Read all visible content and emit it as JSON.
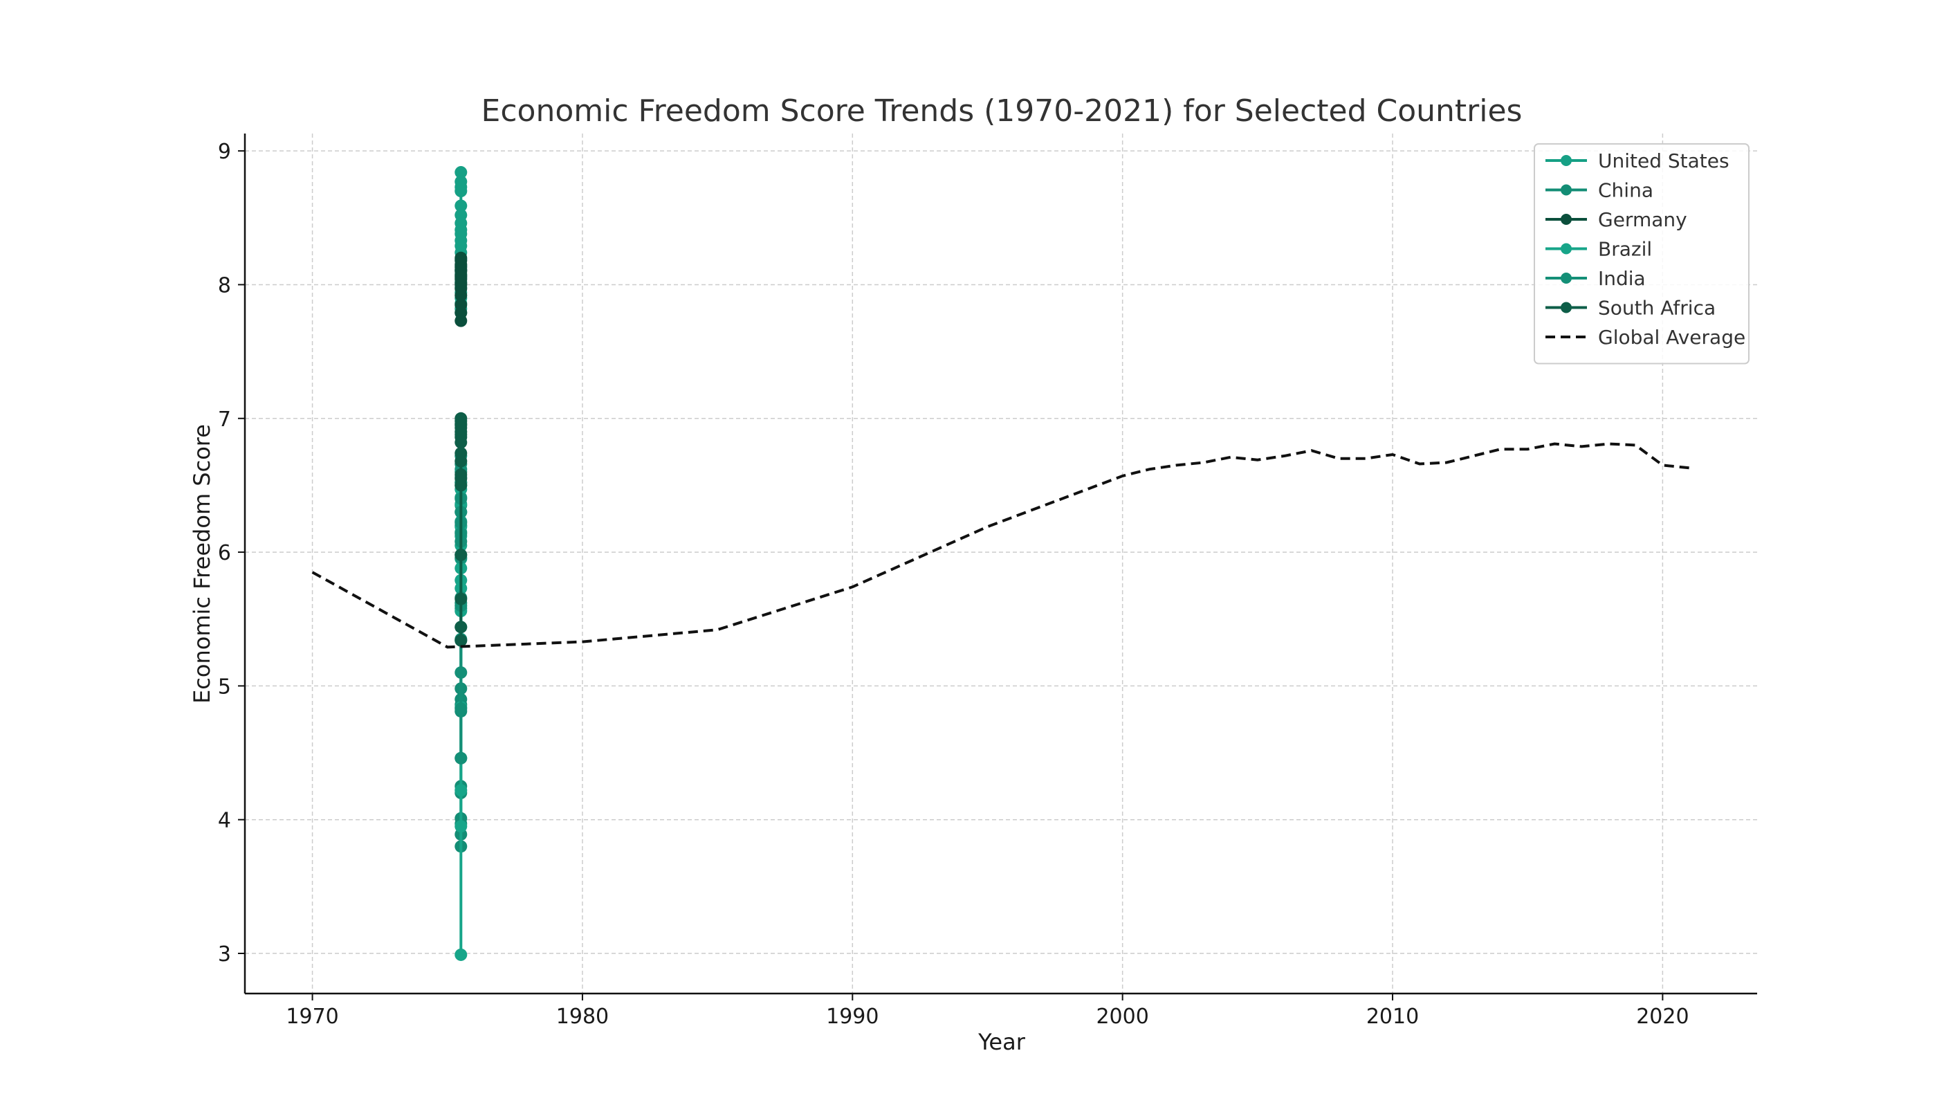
{
  "chart_data": {
    "type": "line",
    "title": "Economic Freedom Score Trends (1970-2021) for Selected Countries",
    "xlabel": "Year",
    "ylabel": "Economic Freedom Score",
    "xlim": [
      1967.5,
      2023.5
    ],
    "ylim": [
      2.7,
      9.13
    ],
    "xticks": [
      1970,
      1980,
      1990,
      2000,
      2010,
      2020
    ],
    "yticks": [
      3,
      4,
      5,
      6,
      7,
      8,
      9
    ],
    "grid": true,
    "legend_position": "top-right",
    "series": [
      {
        "name": "United States",
        "color": "#16a085",
        "style": "solid-markers",
        "x": [
          1975.5,
          1975.5,
          1975.5,
          1975.5,
          1975.5,
          1975.5,
          1975.5,
          1975.5,
          1975.5,
          1975.5,
          1975.5,
          1975.5,
          1975.5,
          1975.5,
          1975.5,
          1975.5,
          1975.5,
          1975.5,
          1975.5,
          1975.5,
          1975.5,
          1975.5,
          1975.5,
          1975.5
        ],
        "y": [
          8.84,
          8.77,
          8.73,
          8.7,
          8.59,
          8.52,
          8.46,
          8.41,
          8.38,
          8.33,
          8.29,
          8.24,
          8.19,
          8.14,
          8.11,
          8.08,
          8.05,
          8.02,
          7.98,
          7.94,
          7.9,
          7.86,
          7.82,
          7.79
        ]
      },
      {
        "name": "China",
        "color": "#138d75",
        "style": "solid-markers",
        "x": [
          1975.5,
          1975.5,
          1975.5,
          1975.5,
          1975.5,
          1975.5,
          1975.5,
          1975.5,
          1975.5,
          1975.5,
          1975.5,
          1975.5,
          1975.5,
          1975.5,
          1975.5,
          1975.5,
          1975.5,
          1975.5,
          1975.5,
          1975.5
        ],
        "y": [
          3.8,
          3.89,
          3.97,
          4.01,
          4.2,
          4.25,
          4.46,
          4.81,
          4.86,
          4.9,
          4.98,
          5.34,
          5.58,
          5.62,
          5.98,
          6.2,
          6.35,
          6.52,
          6.6,
          6.66
        ]
      },
      {
        "name": "Germany",
        "color": "#0b4f3c",
        "style": "solid-markers",
        "x": [
          1975.5,
          1975.5,
          1975.5,
          1975.5,
          1975.5,
          1975.5,
          1975.5,
          1975.5,
          1975.5,
          1975.5,
          1975.5,
          1975.5,
          1975.5,
          1975.5,
          1975.5,
          1975.5
        ],
        "y": [
          7.73,
          7.79,
          7.85,
          7.92,
          7.97,
          8.01,
          8.04,
          8.07,
          8.1,
          8.13,
          8.15,
          8.18,
          8.2,
          8.11,
          8.06,
          8.0
        ]
      },
      {
        "name": "Brazil",
        "color": "#17a589",
        "style": "solid-markers",
        "x": [
          1975.5,
          1975.5,
          1975.5,
          1975.5,
          1975.5,
          1975.5,
          1975.5,
          1975.5,
          1975.5,
          1975.5,
          1975.5,
          1975.5,
          1975.5,
          1975.5,
          1975.5,
          1975.5,
          1975.5,
          1975.5,
          1975.5,
          1975.5
        ],
        "y": [
          2.99,
          3.95,
          4.22,
          4.84,
          5.56,
          5.73,
          5.79,
          5.88,
          5.95,
          6.05,
          6.12,
          6.15,
          6.19,
          6.23,
          6.3,
          6.36,
          6.41,
          6.47,
          6.5,
          6.56
        ]
      },
      {
        "name": "India",
        "color": "#148f77",
        "style": "solid-markers",
        "x": [
          1975.5,
          1975.5,
          1975.5,
          1975.5,
          1975.5,
          1975.5,
          1975.5,
          1975.5,
          1975.5,
          1975.5,
          1975.5,
          1975.5,
          1975.5,
          1975.5,
          1975.5,
          1975.5
        ],
        "y": [
          4.46,
          4.83,
          5.1,
          5.35,
          5.44,
          5.6,
          5.66,
          5.96,
          6.08,
          6.14,
          6.22,
          6.3,
          6.4,
          6.52,
          6.62,
          6.72
        ]
      },
      {
        "name": "South Africa",
        "color": "#0e5e48",
        "style": "solid-markers",
        "x": [
          1975.5,
          1975.5,
          1975.5,
          1975.5,
          1975.5,
          1975.5,
          1975.5,
          1975.5,
          1975.5,
          1975.5,
          1975.5,
          1975.5,
          1975.5,
          1975.5,
          1975.5,
          1975.5,
          1975.5,
          1975.5
        ],
        "y": [
          5.34,
          5.44,
          5.65,
          5.98,
          6.5,
          6.55,
          6.58,
          6.68,
          6.74,
          6.82,
          6.86,
          6.9,
          6.93,
          6.96,
          6.98,
          7.0,
          6.95,
          6.88
        ]
      },
      {
        "name": "Global Average",
        "color": "#111111",
        "style": "dashed",
        "x": [
          1970,
          1975,
          1980,
          1985,
          1990,
          1995,
          2000,
          2001,
          2002,
          2003,
          2004,
          2005,
          2006,
          2007,
          2008,
          2009,
          2010,
          2011,
          2012,
          2013,
          2014,
          2015,
          2016,
          2017,
          2018,
          2019,
          2020,
          2021
        ],
        "y": [
          5.85,
          5.29,
          5.33,
          5.42,
          5.74,
          6.19,
          6.57,
          6.62,
          6.65,
          6.67,
          6.71,
          6.69,
          6.72,
          6.76,
          6.7,
          6.7,
          6.73,
          6.66,
          6.67,
          6.72,
          6.77,
          6.77,
          6.81,
          6.79,
          6.81,
          6.8,
          6.65,
          6.63
        ]
      }
    ]
  }
}
